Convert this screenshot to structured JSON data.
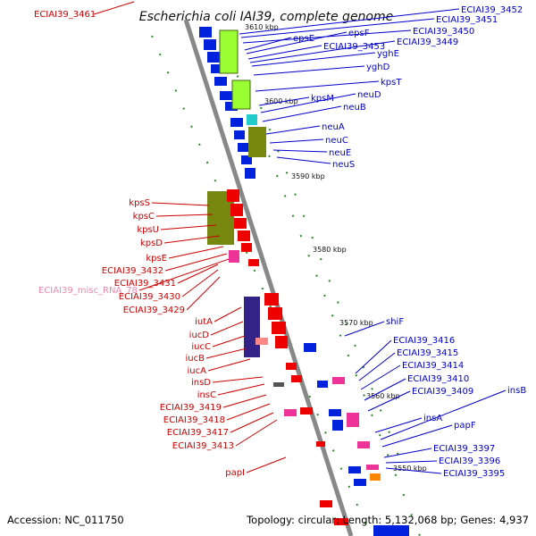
{
  "title": "Escherichia coli IAI39, complete genome",
  "footer": {
    "accession": "Accession: NC_011750",
    "summary": "Topology: circular; Length: 5,132,068 bp; Genes: 4,937"
  },
  "colors": {
    "forward_label": "#0000cc",
    "reverse_label": "#cc0000",
    "rna_label": "#ee88aa",
    "forward_gene": "#0022dd",
    "reverse_gene": "#ee0000",
    "backbone": "#888888",
    "tick": "#2a8a2a"
  },
  "ticks": [
    "3610 kbp",
    "3600 kbp",
    "3590 kbp",
    "3580 kbp",
    "3570 kbp",
    "3560 kbp",
    "3550 kbp"
  ],
  "labels": {
    "top_left": [
      "ECIAI39_3461"
    ],
    "right": [
      "ECIAI39_3452",
      "ECIAI39_3451",
      "ECIAI39_3450",
      "epsE",
      "epsF",
      "ECIAI39_3453",
      "ECIAI39_3449",
      "yghE",
      "yghD",
      "kpsT",
      "kpsM",
      "neuD",
      "neuB",
      "neuA",
      "neuC",
      "neuE",
      "neuS"
    ],
    "left": [
      "kpsS",
      "kpsC",
      "kpsU",
      "kpsD",
      "kpsE",
      "ECIAI39_3432",
      "ECIAI39_misc_RNA_78",
      "ECIAI39_3431",
      "ECIAI39_3430",
      "ECIAI39_3429",
      "iutA",
      "iucD",
      "iucC",
      "iucB",
      "iucA",
      "insD",
      "insC",
      "ECIAI39_3419",
      "ECIAI39_3418",
      "ECIAI39_3417",
      "ECIAI39_3413",
      "papI"
    ],
    "right_lower": [
      "shiF",
      "ECIAI39_3416",
      "ECIAI39_3415",
      "ECIAI39_3414",
      "ECIAI39_3410",
      "ECIAI39_3409",
      "insB",
      "insA",
      "papF",
      "ECIAI39_3397",
      "ECIAI39_3396",
      "ECIAI39_3395"
    ]
  }
}
